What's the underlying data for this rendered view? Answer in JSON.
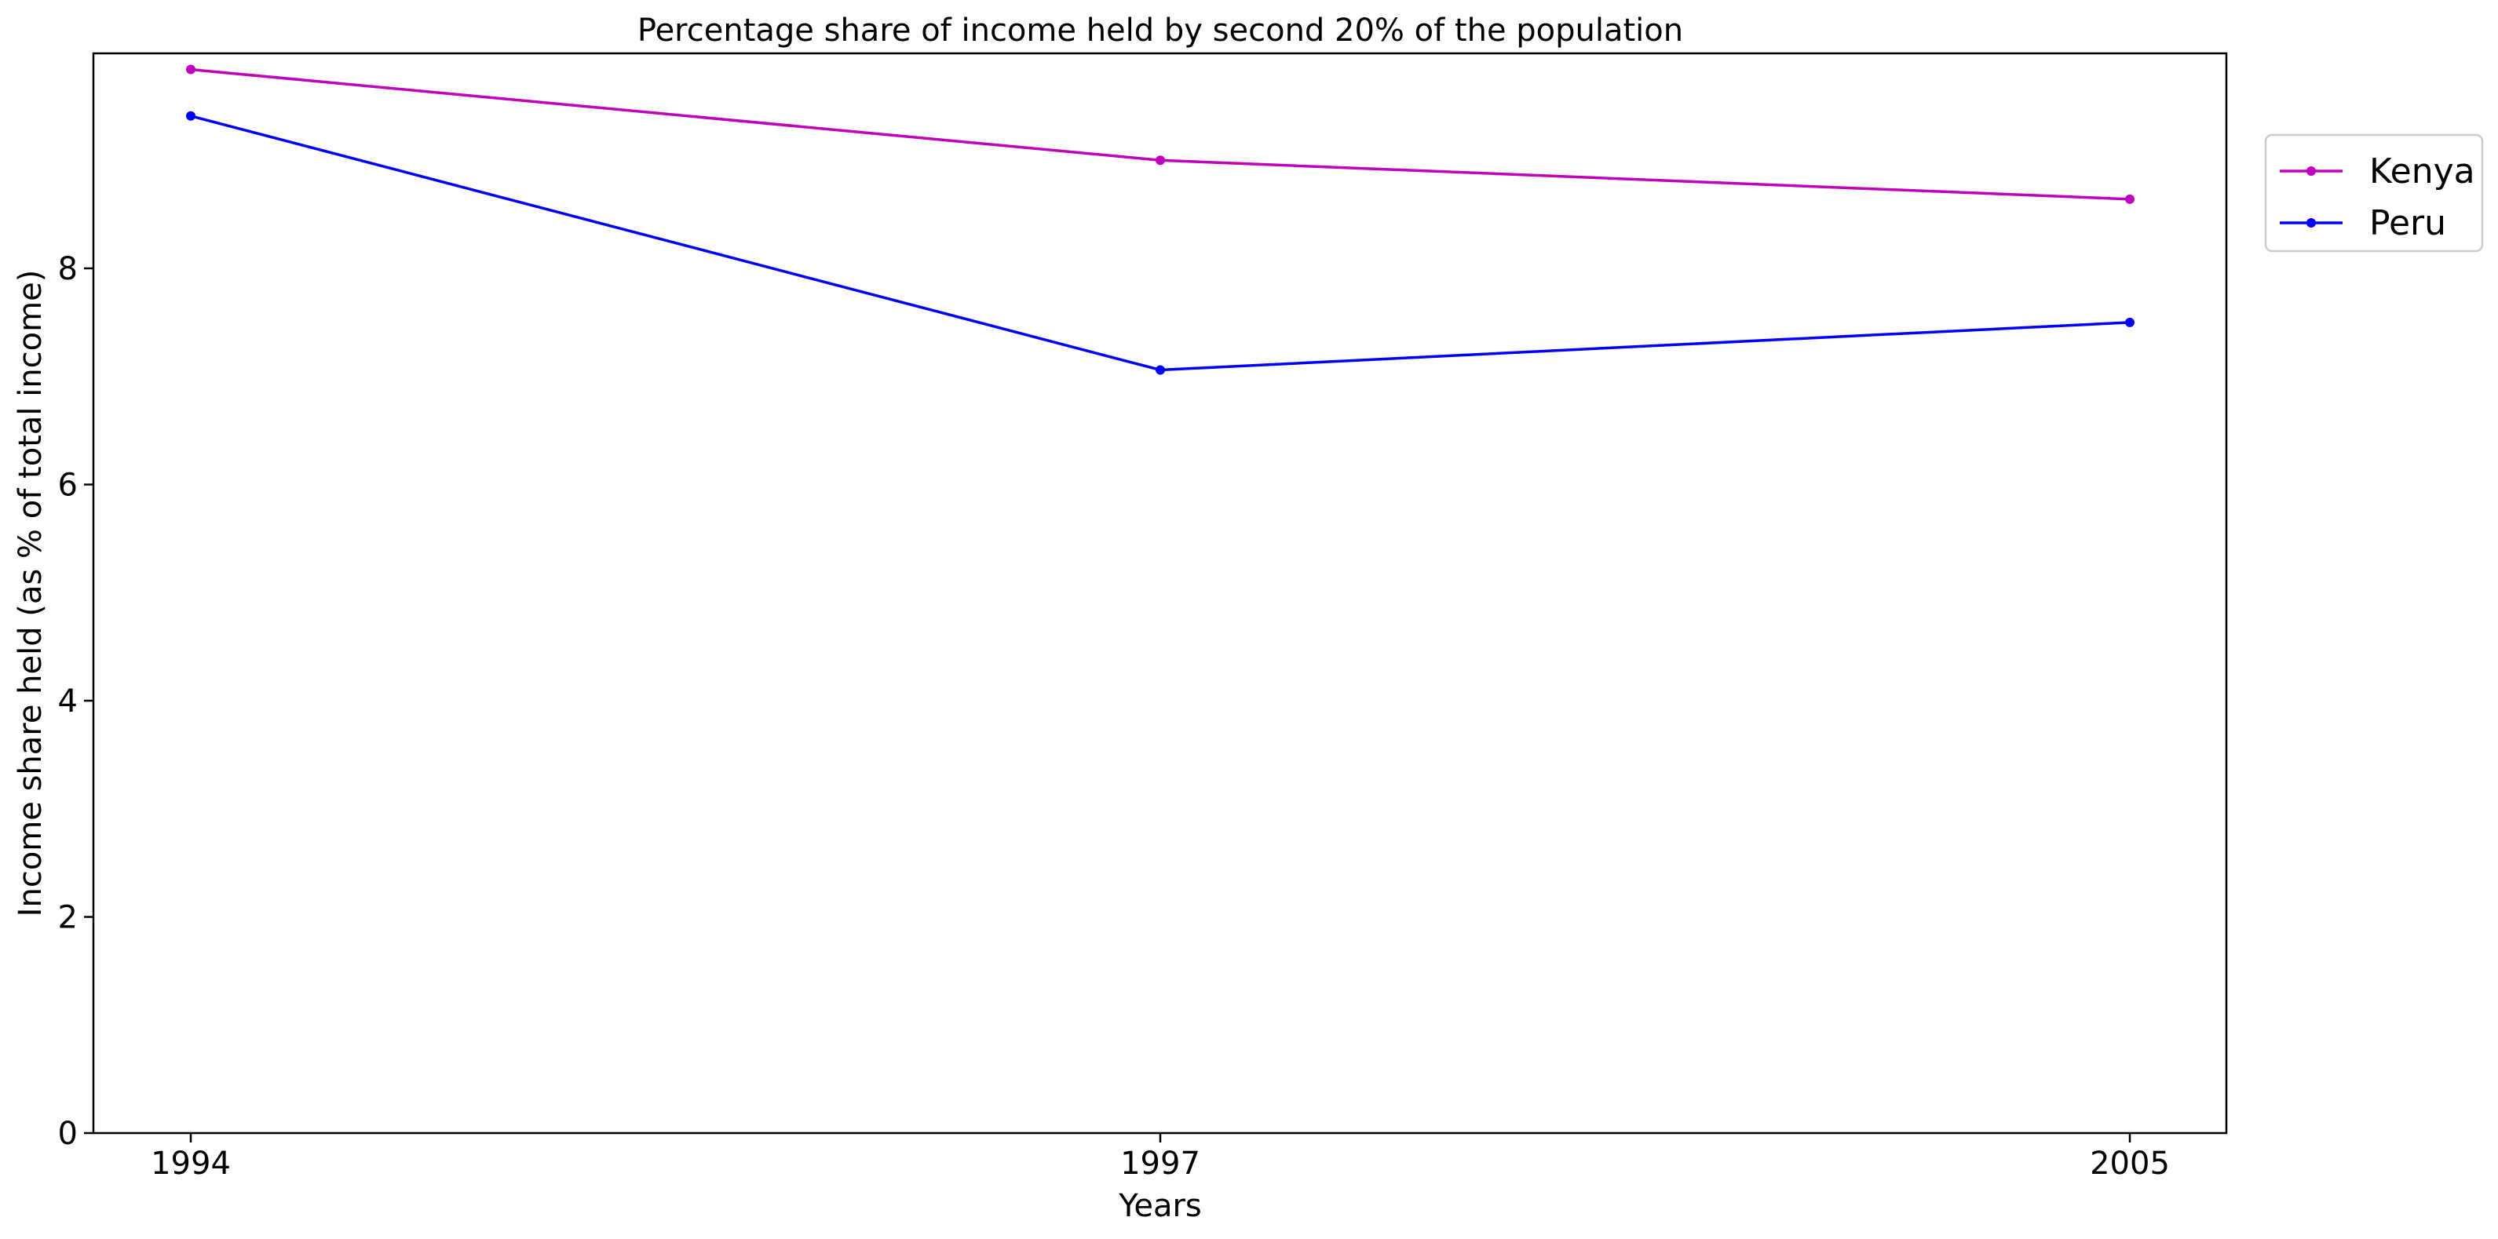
{
  "chart_data": {
    "type": "line",
    "title": "Percentage share of income held by second 20% of the population",
    "xlabel": "Years",
    "ylabel": "Income share held (as % of total income)",
    "categories": [
      "1994",
      "1997",
      "2005"
    ],
    "ylim": [
      0,
      10
    ],
    "yticks": [
      0,
      2,
      4,
      6,
      8
    ],
    "grid": false,
    "legend_position": "top-right outside",
    "series": [
      {
        "name": "Kenya",
        "color": "#bf00bf",
        "values": [
          9.84,
          9.0,
          8.64
        ]
      },
      {
        "name": "Peru",
        "color": "#0000ff",
        "values": [
          9.41,
          7.06,
          7.5
        ]
      }
    ]
  }
}
